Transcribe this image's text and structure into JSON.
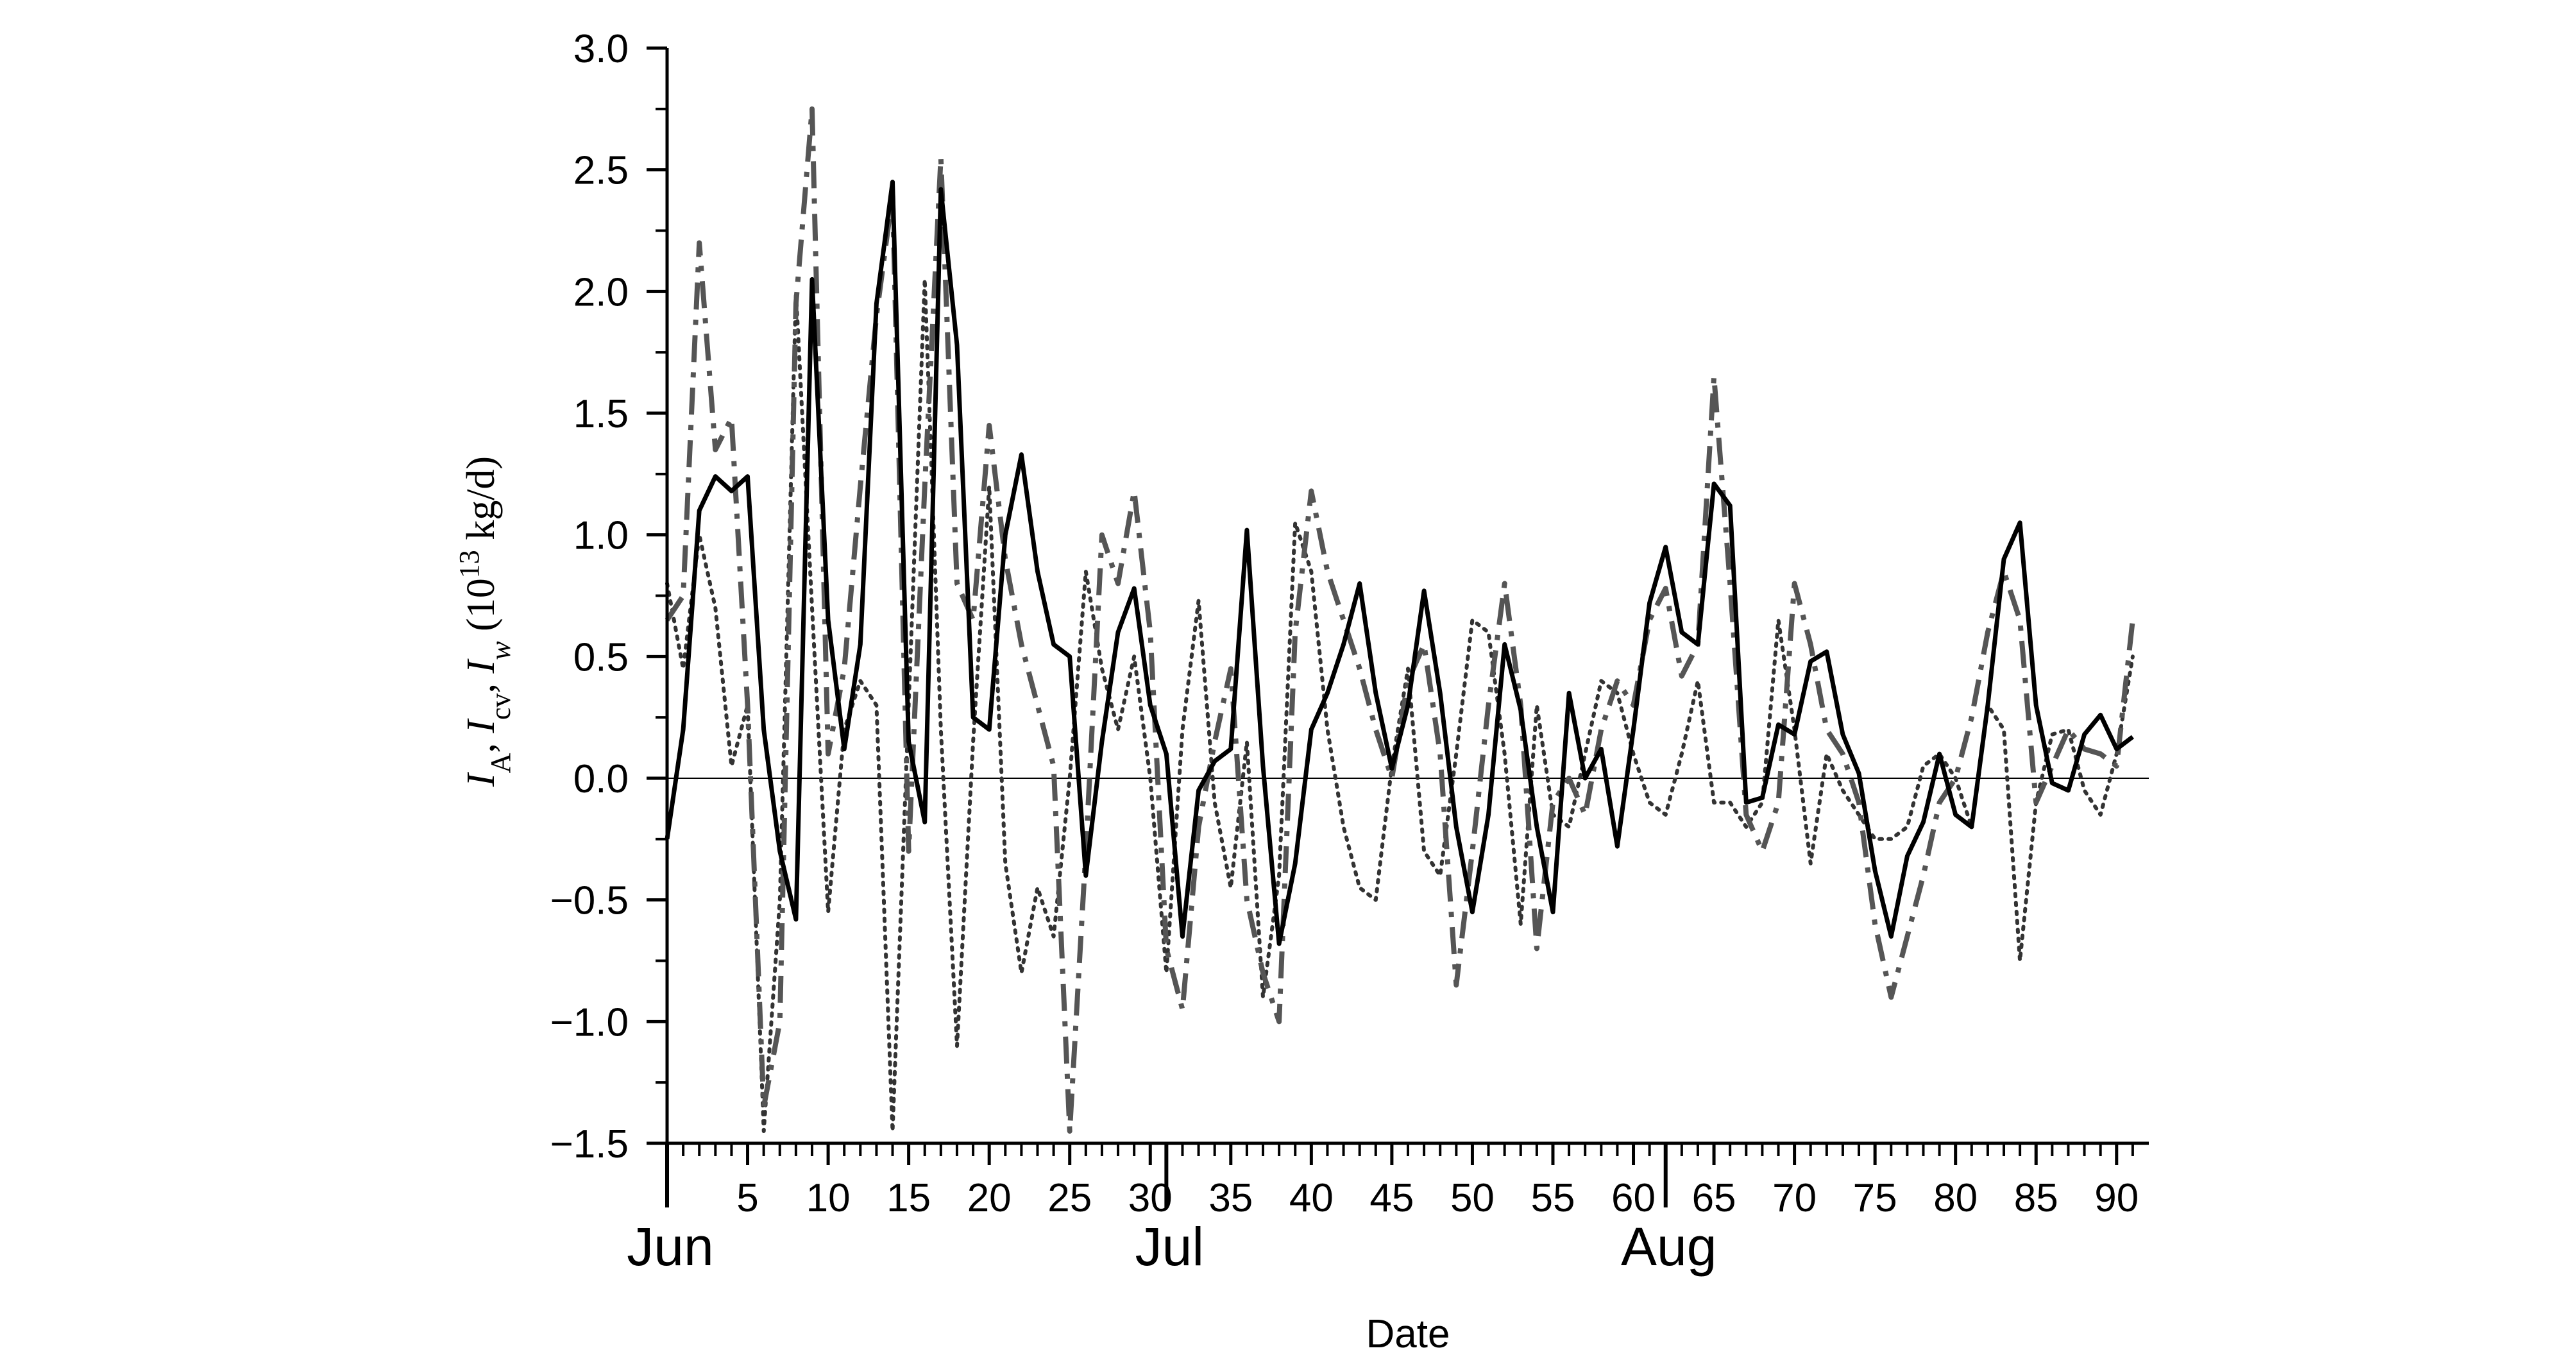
{
  "chart_data": {
    "type": "line",
    "xlabel": "Date",
    "ylabel_parts": {
      "s1": "I",
      "s1_sub": "A",
      "sep1": ", ",
      "s2": "I",
      "s2_sub": "cv",
      "sep2": ", ",
      "s3": "I",
      "s3_sub": "w",
      "unit_open": " (10",
      "unit_exp": "13",
      "unit_close": " kg/d)"
    },
    "xlim": [
      0,
      92
    ],
    "ylim": [
      -1.5,
      3.0
    ],
    "x_ticks": [
      5,
      10,
      15,
      20,
      25,
      30,
      35,
      40,
      45,
      50,
      55,
      60,
      65,
      70,
      75,
      80,
      85,
      90
    ],
    "y_ticks": [
      "3.0",
      "2.5",
      "2.0",
      "1.5",
      "1.0",
      "0.5",
      "0.0",
      "−0.5",
      "−1.0",
      "−1.5"
    ],
    "y_tick_values": [
      3.0,
      2.5,
      2.0,
      1.5,
      1.0,
      0.5,
      0.0,
      -0.5,
      -1.0,
      -1.5
    ],
    "month_markers": [
      {
        "label": "Jun",
        "x": 0
      },
      {
        "label": "Jul",
        "x": 31
      },
      {
        "label": "Aug",
        "x": 62
      }
    ],
    "zero_line": true,
    "series": [
      {
        "style": "solid",
        "color": "#000000",
        "x": [
          0,
          1,
          2,
          3,
          4,
          5,
          6,
          7,
          8,
          9,
          10,
          11,
          12,
          13,
          14,
          15,
          16,
          17,
          18,
          19,
          20,
          21,
          22,
          23,
          24,
          25,
          26,
          27,
          28,
          29,
          30,
          31,
          32,
          33,
          34,
          35,
          36,
          37,
          38,
          39,
          40,
          41,
          42,
          43,
          44,
          45,
          46,
          47,
          48,
          49,
          50,
          51,
          52,
          53,
          54,
          55,
          56,
          57,
          58,
          59,
          60,
          61,
          62,
          63,
          64,
          65,
          66,
          67,
          68,
          69,
          70,
          71,
          72,
          73,
          74,
          75,
          76,
          77,
          78,
          79,
          80,
          81,
          82,
          83,
          84,
          85,
          86,
          87,
          88,
          89,
          90,
          91
        ],
        "y": [
          -0.25,
          0.2,
          1.1,
          1.24,
          1.18,
          1.24,
          0.2,
          -0.3,
          -0.58,
          2.05,
          0.65,
          0.12,
          0.55,
          1.95,
          2.45,
          0.15,
          -0.18,
          2.42,
          1.78,
          0.25,
          0.2,
          1.0,
          1.33,
          0.85,
          0.55,
          0.5,
          -0.4,
          0.15,
          0.6,
          0.78,
          0.3,
          0.1,
          -0.65,
          -0.05,
          0.07,
          0.12,
          1.02,
          0.05,
          -0.68,
          -0.35,
          0.2,
          0.35,
          0.55,
          0.8,
          0.35,
          0.04,
          0.3,
          0.77,
          0.35,
          -0.2,
          -0.55,
          -0.15,
          0.55,
          0.28,
          -0.2,
          -0.55,
          0.35,
          0.0,
          0.12,
          -0.28,
          0.2,
          0.72,
          0.95,
          0.6,
          0.55,
          1.21,
          1.12,
          -0.1,
          -0.08,
          0.22,
          0.18,
          0.48,
          0.52,
          0.18,
          0.02,
          -0.38,
          -0.65,
          -0.32,
          -0.18,
          0.1,
          -0.15,
          -0.2,
          0.3,
          0.9,
          1.05,
          0.3,
          -0.02,
          -0.05,
          0.18,
          0.26,
          0.12,
          0.17
        ]
      },
      {
        "style": "dashdot",
        "color": "#555555",
        "x": [
          0,
          1,
          2,
          3,
          4,
          5,
          6,
          7,
          8,
          9,
          10,
          11,
          12,
          13,
          14,
          15,
          16,
          17,
          18,
          19,
          20,
          21,
          22,
          23,
          24,
          25,
          26,
          27,
          28,
          29,
          30,
          31,
          32,
          33,
          34,
          35,
          36,
          37,
          38,
          39,
          40,
          41,
          42,
          43,
          44,
          45,
          46,
          47,
          48,
          49,
          50,
          51,
          52,
          53,
          54,
          55,
          56,
          57,
          58,
          59,
          60,
          61,
          62,
          63,
          64,
          65,
          66,
          67,
          68,
          69,
          70,
          71,
          72,
          73,
          74,
          75,
          76,
          77,
          78,
          79,
          80,
          81,
          82,
          83,
          84,
          85,
          86,
          87,
          88,
          89,
          90,
          91
        ],
        "y": [
          0.65,
          0.75,
          2.2,
          1.35,
          1.48,
          0.3,
          -1.35,
          -1.0,
          1.95,
          2.75,
          0.1,
          0.45,
          1.2,
          1.9,
          2.4,
          -0.3,
          1.2,
          2.55,
          0.8,
          0.65,
          1.45,
          0.9,
          0.55,
          0.3,
          0.05,
          -1.45,
          -0.3,
          1.0,
          0.8,
          1.18,
          0.6,
          -0.7,
          -0.95,
          -0.2,
          0.15,
          0.45,
          -0.5,
          -0.8,
          -1.0,
          0.6,
          1.18,
          0.85,
          0.65,
          0.45,
          0.2,
          0.0,
          0.4,
          0.55,
          0.1,
          -0.85,
          -0.3,
          0.3,
          0.8,
          0.3,
          -0.7,
          -0.1,
          0.0,
          -0.15,
          0.2,
          0.4,
          0.3,
          0.65,
          0.78,
          0.42,
          0.55,
          1.65,
          0.8,
          -0.15,
          -0.3,
          -0.1,
          0.8,
          0.55,
          0.2,
          0.1,
          -0.1,
          -0.6,
          -0.9,
          -0.65,
          -0.4,
          -0.1,
          0.0,
          0.25,
          0.6,
          0.85,
          0.65,
          -0.1,
          0.05,
          0.2,
          0.12,
          0.1,
          0.05,
          0.65
        ]
      },
      {
        "style": "dotted",
        "color": "#333333",
        "x": [
          0,
          1,
          2,
          3,
          4,
          5,
          6,
          7,
          8,
          9,
          10,
          11,
          12,
          13,
          14,
          15,
          16,
          17,
          18,
          19,
          20,
          21,
          22,
          23,
          24,
          25,
          26,
          27,
          28,
          29,
          30,
          31,
          32,
          33,
          34,
          35,
          36,
          37,
          38,
          39,
          40,
          41,
          42,
          43,
          44,
          45,
          46,
          47,
          48,
          49,
          50,
          51,
          52,
          53,
          54,
          55,
          56,
          57,
          58,
          59,
          60,
          61,
          62,
          63,
          64,
          65,
          66,
          67,
          68,
          69,
          70,
          71,
          72,
          73,
          74,
          75,
          76,
          77,
          78,
          79,
          80,
          81,
          82,
          83,
          84,
          85,
          86,
          87,
          88,
          89,
          90,
          91
        ],
        "y": [
          0.8,
          0.45,
          1.0,
          0.7,
          0.05,
          0.3,
          -1.45,
          -0.5,
          2.0,
          0.7,
          -0.55,
          0.2,
          0.4,
          0.3,
          -1.45,
          0.3,
          2.05,
          0.2,
          -1.1,
          0.15,
          1.2,
          -0.35,
          -0.8,
          -0.45,
          -0.65,
          0.0,
          0.85,
          0.45,
          0.2,
          0.5,
          0.0,
          -0.8,
          0.2,
          0.73,
          -0.1,
          -0.45,
          0.15,
          -0.9,
          -0.4,
          1.05,
          0.85,
          0.2,
          -0.2,
          -0.45,
          -0.5,
          0.05,
          0.45,
          -0.3,
          -0.4,
          0.1,
          0.65,
          0.6,
          0.1,
          -0.6,
          0.3,
          -0.15,
          -0.2,
          0.1,
          0.4,
          0.35,
          0.1,
          -0.1,
          -0.15,
          0.1,
          0.4,
          -0.1,
          -0.1,
          -0.2,
          -0.1,
          0.65,
          0.2,
          -0.35,
          0.1,
          -0.05,
          -0.15,
          -0.25,
          -0.25,
          -0.2,
          0.05,
          0.1,
          0.0,
          -0.2,
          0.3,
          0.2,
          -0.75,
          -0.1,
          0.18,
          0.2,
          -0.05,
          -0.15,
          0.1,
          0.5
        ]
      }
    ]
  }
}
